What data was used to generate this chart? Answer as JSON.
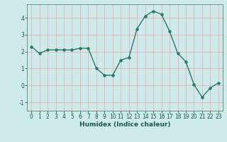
{
  "x": [
    0,
    1,
    2,
    3,
    4,
    5,
    6,
    7,
    8,
    9,
    10,
    11,
    12,
    13,
    14,
    15,
    16,
    17,
    18,
    19,
    20,
    21,
    22,
    23
  ],
  "y": [
    2.3,
    1.9,
    2.1,
    2.1,
    2.1,
    2.1,
    2.2,
    2.2,
    1.0,
    0.6,
    0.6,
    1.5,
    1.65,
    3.35,
    4.1,
    4.4,
    4.2,
    3.2,
    1.9,
    1.4,
    0.05,
    -0.7,
    -0.15,
    0.15
  ],
  "line_color": "#2a7a6a",
  "marker": "o",
  "marker_size": 2.2,
  "bg_color": "#ceeaea",
  "grid_color": "#e8a8a8",
  "xlabel": "Humidex (Indice chaleur)",
  "xlim": [
    -0.5,
    23.5
  ],
  "ylim": [
    -1.5,
    4.8
  ],
  "yticks": [
    -1,
    0,
    1,
    2,
    3,
    4
  ],
  "xticks": [
    0,
    1,
    2,
    3,
    4,
    5,
    6,
    7,
    8,
    9,
    10,
    11,
    12,
    13,
    14,
    15,
    16,
    17,
    18,
    19,
    20,
    21,
    22,
    23
  ],
  "tick_fontsize": 5.5,
  "xlabel_fontsize": 6.5,
  "linewidth": 1.0
}
